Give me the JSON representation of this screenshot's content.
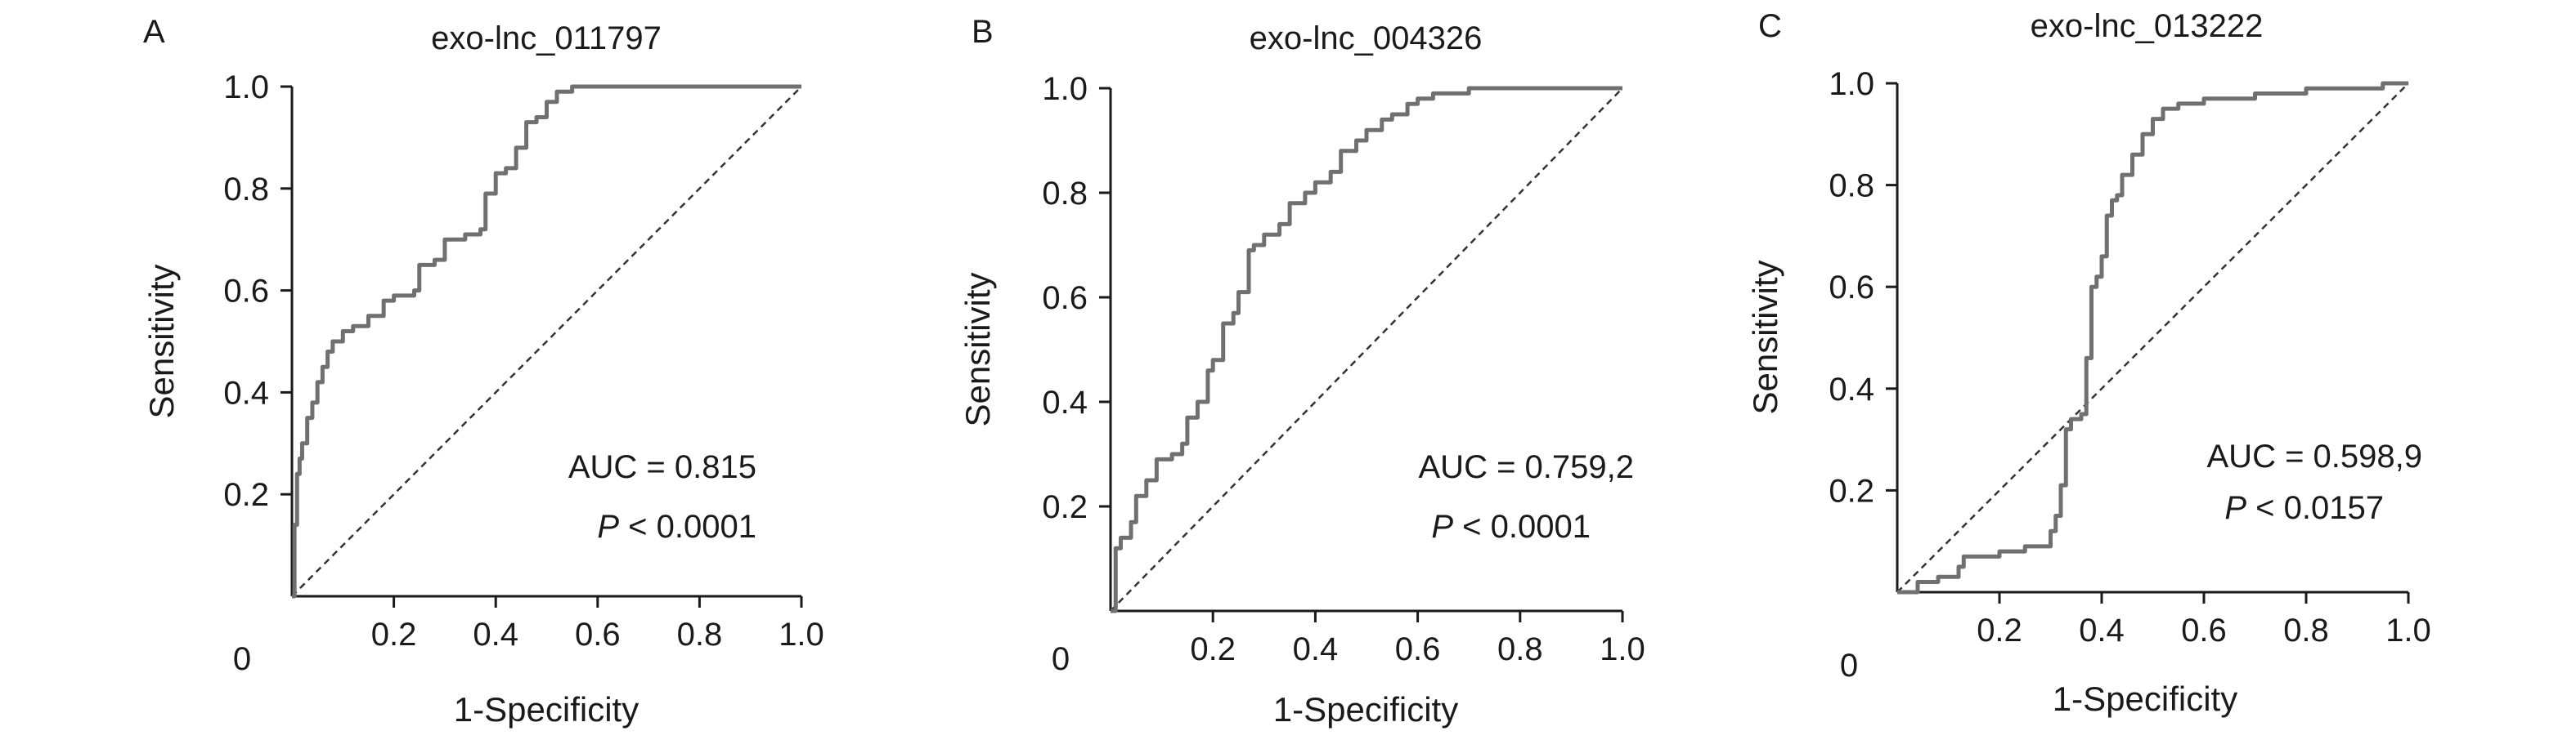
{
  "chart_data": [
    {
      "type": "line",
      "panel": "A",
      "title": "exo-lnc_011797",
      "xlabel": "1-Specificity",
      "ylabel": "Sensitivity",
      "xlim": [
        0,
        1
      ],
      "ylim": [
        0,
        1
      ],
      "x_ticks": [
        0.2,
        0.4,
        0.6,
        0.8,
        1.0
      ],
      "x_tick_labels": [
        "0.2",
        "0.4",
        "0.6",
        "0.8",
        "1.0"
      ],
      "y_ticks": [
        0.2,
        0.4,
        0.6,
        0.8,
        1.0
      ],
      "y_tick_labels": [
        "0.2",
        "0.4",
        "0.6",
        "0.8",
        "1.0"
      ],
      "origin_label": "0",
      "grid": false,
      "reference_line": true,
      "annotations": [
        {
          "text": "AUC = 0.815"
        },
        {
          "italic": "P",
          "text": " < 0.0001"
        }
      ],
      "series": [
        {
          "x": [
            0,
            0.005,
            0.01,
            0.015,
            0.02,
            0.03,
            0.04,
            0.05,
            0.06,
            0.07,
            0.08,
            0.1,
            0.12,
            0.15,
            0.18,
            0.2,
            0.24,
            0.25,
            0.28,
            0.3,
            0.34,
            0.37,
            0.38,
            0.4,
            0.42,
            0.44,
            0.46,
            0.48,
            0.5,
            0.52,
            0.55,
            0.6,
            0.7,
            0.8,
            0.9,
            1.0
          ],
          "y": [
            0,
            0.14,
            0.24,
            0.27,
            0.3,
            0.35,
            0.38,
            0.42,
            0.45,
            0.48,
            0.5,
            0.52,
            0.53,
            0.55,
            0.58,
            0.59,
            0.6,
            0.65,
            0.66,
            0.7,
            0.71,
            0.72,
            0.79,
            0.83,
            0.84,
            0.88,
            0.93,
            0.94,
            0.97,
            0.99,
            1.0,
            1.0,
            1.0,
            1.0,
            1.0,
            1.0
          ]
        }
      ]
    },
    {
      "type": "line",
      "panel": "B",
      "title": "exo-lnc_004326",
      "xlabel": "1-Specificity",
      "ylabel": "Sensitivity",
      "xlim": [
        0,
        1
      ],
      "ylim": [
        0,
        1
      ],
      "x_ticks": [
        0.2,
        0.4,
        0.6,
        0.8,
        1.0
      ],
      "x_tick_labels": [
        "0.2",
        "0.4",
        "0.6",
        "0.8",
        "1.0"
      ],
      "y_ticks": [
        0.2,
        0.4,
        0.6,
        0.8,
        1.0
      ],
      "y_tick_labels": [
        "0.2",
        "0.4",
        "0.6",
        "0.8",
        "1.0"
      ],
      "origin_label": "0",
      "grid": false,
      "reference_line": true,
      "annotations": [
        {
          "text": "AUC = 0.759,2"
        },
        {
          "italic": "P",
          "text": " < 0.0001"
        }
      ],
      "series": [
        {
          "x": [
            0,
            0.01,
            0.02,
            0.04,
            0.05,
            0.07,
            0.09,
            0.12,
            0.14,
            0.15,
            0.17,
            0.19,
            0.2,
            0.22,
            0.24,
            0.25,
            0.27,
            0.28,
            0.3,
            0.33,
            0.35,
            0.38,
            0.4,
            0.43,
            0.45,
            0.48,
            0.5,
            0.53,
            0.55,
            0.58,
            0.6,
            0.63,
            0.65,
            0.7,
            0.8,
            0.9,
            1.0
          ],
          "y": [
            0,
            0.12,
            0.14,
            0.17,
            0.22,
            0.25,
            0.29,
            0.3,
            0.32,
            0.37,
            0.4,
            0.46,
            0.48,
            0.55,
            0.57,
            0.61,
            0.69,
            0.7,
            0.72,
            0.74,
            0.78,
            0.8,
            0.82,
            0.84,
            0.88,
            0.9,
            0.92,
            0.94,
            0.95,
            0.97,
            0.98,
            0.99,
            0.99,
            1.0,
            1.0,
            1.0,
            1.0
          ]
        }
      ]
    },
    {
      "type": "line",
      "panel": "C",
      "title": "exo-lnc_013222",
      "xlabel": "1-Specificity",
      "ylabel": "Sensitivity",
      "xlim": [
        0,
        1
      ],
      "ylim": [
        0,
        1
      ],
      "x_ticks": [
        0.2,
        0.4,
        0.6,
        0.8,
        1.0
      ],
      "x_tick_labels": [
        "0.2",
        "0.4",
        "0.6",
        "0.8",
        "1.0"
      ],
      "y_ticks": [
        0.2,
        0.4,
        0.6,
        0.8,
        1.0
      ],
      "y_tick_labels": [
        "0.2",
        "0.4",
        "0.6",
        "0.8",
        "1.0"
      ],
      "origin_label": "0",
      "grid": false,
      "reference_line": true,
      "annotations": [
        {
          "text": "AUC = 0.598,9"
        },
        {
          "italic": "P",
          "text": " < 0.0157"
        }
      ],
      "series": [
        {
          "x": [
            0,
            0.04,
            0.08,
            0.12,
            0.13,
            0.2,
            0.25,
            0.3,
            0.31,
            0.32,
            0.33,
            0.34,
            0.36,
            0.37,
            0.38,
            0.39,
            0.4,
            0.41,
            0.42,
            0.43,
            0.44,
            0.46,
            0.48,
            0.5,
            0.52,
            0.55,
            0.6,
            0.7,
            0.8,
            0.9,
            0.95,
            1.0
          ],
          "y": [
            0,
            0.02,
            0.03,
            0.05,
            0.07,
            0.08,
            0.09,
            0.12,
            0.15,
            0.21,
            0.32,
            0.34,
            0.35,
            0.46,
            0.6,
            0.62,
            0.66,
            0.74,
            0.77,
            0.78,
            0.82,
            0.86,
            0.9,
            0.93,
            0.95,
            0.96,
            0.97,
            0.98,
            0.99,
            0.99,
            1.0,
            1.0
          ]
        }
      ]
    }
  ]
}
